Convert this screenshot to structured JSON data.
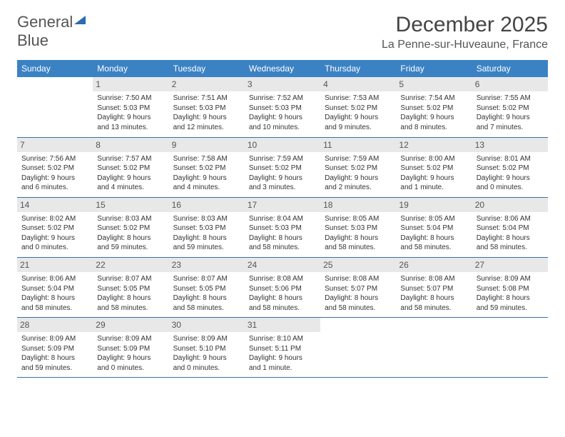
{
  "logo": {
    "word1": "General",
    "word2": "Blue"
  },
  "title": "December 2025",
  "location": "La Penne-sur-Huveaune, France",
  "colors": {
    "header_bg": "#3b82c4",
    "header_text": "#ffffff",
    "daynum_bg": "#e8e8e8",
    "row_border": "#3b6fa0",
    "logo_accent": "#2e6bad",
    "text": "#333333"
  },
  "weekdays": [
    "Sunday",
    "Monday",
    "Tuesday",
    "Wednesday",
    "Thursday",
    "Friday",
    "Saturday"
  ],
  "weeks": [
    [
      null,
      {
        "n": "1",
        "sr": "7:50 AM",
        "ss": "5:03 PM",
        "dl": "9 hours and 13 minutes."
      },
      {
        "n": "2",
        "sr": "7:51 AM",
        "ss": "5:03 PM",
        "dl": "9 hours and 12 minutes."
      },
      {
        "n": "3",
        "sr": "7:52 AM",
        "ss": "5:03 PM",
        "dl": "9 hours and 10 minutes."
      },
      {
        "n": "4",
        "sr": "7:53 AM",
        "ss": "5:02 PM",
        "dl": "9 hours and 9 minutes."
      },
      {
        "n": "5",
        "sr": "7:54 AM",
        "ss": "5:02 PM",
        "dl": "9 hours and 8 minutes."
      },
      {
        "n": "6",
        "sr": "7:55 AM",
        "ss": "5:02 PM",
        "dl": "9 hours and 7 minutes."
      }
    ],
    [
      {
        "n": "7",
        "sr": "7:56 AM",
        "ss": "5:02 PM",
        "dl": "9 hours and 6 minutes."
      },
      {
        "n": "8",
        "sr": "7:57 AM",
        "ss": "5:02 PM",
        "dl": "9 hours and 4 minutes."
      },
      {
        "n": "9",
        "sr": "7:58 AM",
        "ss": "5:02 PM",
        "dl": "9 hours and 4 minutes."
      },
      {
        "n": "10",
        "sr": "7:59 AM",
        "ss": "5:02 PM",
        "dl": "9 hours and 3 minutes."
      },
      {
        "n": "11",
        "sr": "7:59 AM",
        "ss": "5:02 PM",
        "dl": "9 hours and 2 minutes."
      },
      {
        "n": "12",
        "sr": "8:00 AM",
        "ss": "5:02 PM",
        "dl": "9 hours and 1 minute."
      },
      {
        "n": "13",
        "sr": "8:01 AM",
        "ss": "5:02 PM",
        "dl": "9 hours and 0 minutes."
      }
    ],
    [
      {
        "n": "14",
        "sr": "8:02 AM",
        "ss": "5:02 PM",
        "dl": "9 hours and 0 minutes."
      },
      {
        "n": "15",
        "sr": "8:03 AM",
        "ss": "5:02 PM",
        "dl": "8 hours and 59 minutes."
      },
      {
        "n": "16",
        "sr": "8:03 AM",
        "ss": "5:03 PM",
        "dl": "8 hours and 59 minutes."
      },
      {
        "n": "17",
        "sr": "8:04 AM",
        "ss": "5:03 PM",
        "dl": "8 hours and 58 minutes."
      },
      {
        "n": "18",
        "sr": "8:05 AM",
        "ss": "5:03 PM",
        "dl": "8 hours and 58 minutes."
      },
      {
        "n": "19",
        "sr": "8:05 AM",
        "ss": "5:04 PM",
        "dl": "8 hours and 58 minutes."
      },
      {
        "n": "20",
        "sr": "8:06 AM",
        "ss": "5:04 PM",
        "dl": "8 hours and 58 minutes."
      }
    ],
    [
      {
        "n": "21",
        "sr": "8:06 AM",
        "ss": "5:04 PM",
        "dl": "8 hours and 58 minutes."
      },
      {
        "n": "22",
        "sr": "8:07 AM",
        "ss": "5:05 PM",
        "dl": "8 hours and 58 minutes."
      },
      {
        "n": "23",
        "sr": "8:07 AM",
        "ss": "5:05 PM",
        "dl": "8 hours and 58 minutes."
      },
      {
        "n": "24",
        "sr": "8:08 AM",
        "ss": "5:06 PM",
        "dl": "8 hours and 58 minutes."
      },
      {
        "n": "25",
        "sr": "8:08 AM",
        "ss": "5:07 PM",
        "dl": "8 hours and 58 minutes."
      },
      {
        "n": "26",
        "sr": "8:08 AM",
        "ss": "5:07 PM",
        "dl": "8 hours and 58 minutes."
      },
      {
        "n": "27",
        "sr": "8:09 AM",
        "ss": "5:08 PM",
        "dl": "8 hours and 59 minutes."
      }
    ],
    [
      {
        "n": "28",
        "sr": "8:09 AM",
        "ss": "5:09 PM",
        "dl": "8 hours and 59 minutes."
      },
      {
        "n": "29",
        "sr": "8:09 AM",
        "ss": "5:09 PM",
        "dl": "9 hours and 0 minutes."
      },
      {
        "n": "30",
        "sr": "8:09 AM",
        "ss": "5:10 PM",
        "dl": "9 hours and 0 minutes."
      },
      {
        "n": "31",
        "sr": "8:10 AM",
        "ss": "5:11 PM",
        "dl": "9 hours and 1 minute."
      },
      null,
      null,
      null
    ]
  ],
  "labels": {
    "sunrise": "Sunrise:",
    "sunset": "Sunset:",
    "daylight": "Daylight:"
  }
}
